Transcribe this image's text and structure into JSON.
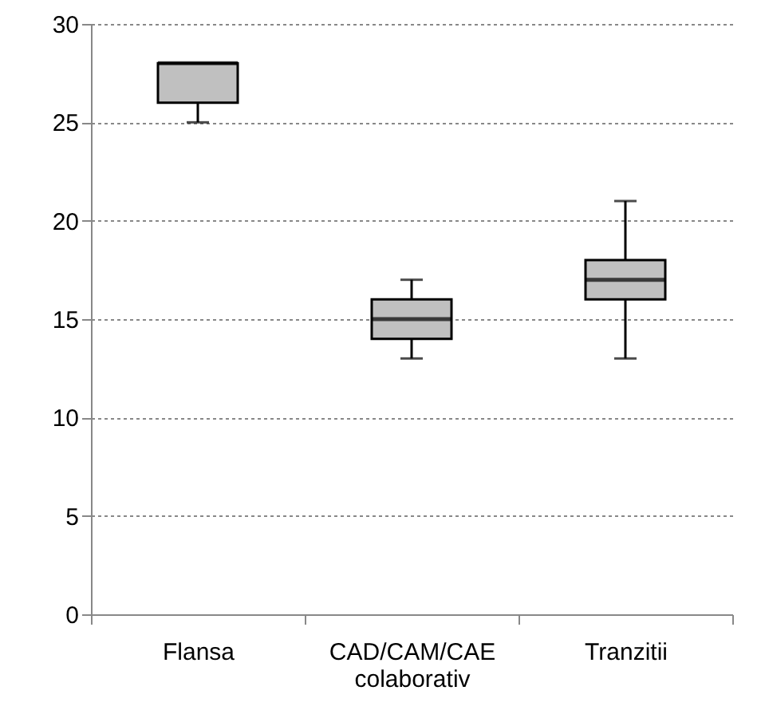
{
  "chart_data": {
    "type": "box",
    "categories": [
      "Flansa",
      "CAD/CAM/CAE colaborativ",
      "Tranzitii"
    ],
    "boxes": [
      {
        "low": 25,
        "q1": 26,
        "median": 28,
        "q3": 28,
        "high": 28
      },
      {
        "low": 13,
        "q1": 14,
        "median": 15,
        "q3": 16,
        "high": 17
      },
      {
        "low": 13,
        "q1": 16,
        "median": 17,
        "q3": 18,
        "high": 21
      }
    ],
    "color": "#c0c0c0",
    "ylim": [
      0,
      30
    ],
    "yticks": [
      0,
      5,
      10,
      15,
      20,
      25,
      30
    ],
    "grid": "y"
  }
}
